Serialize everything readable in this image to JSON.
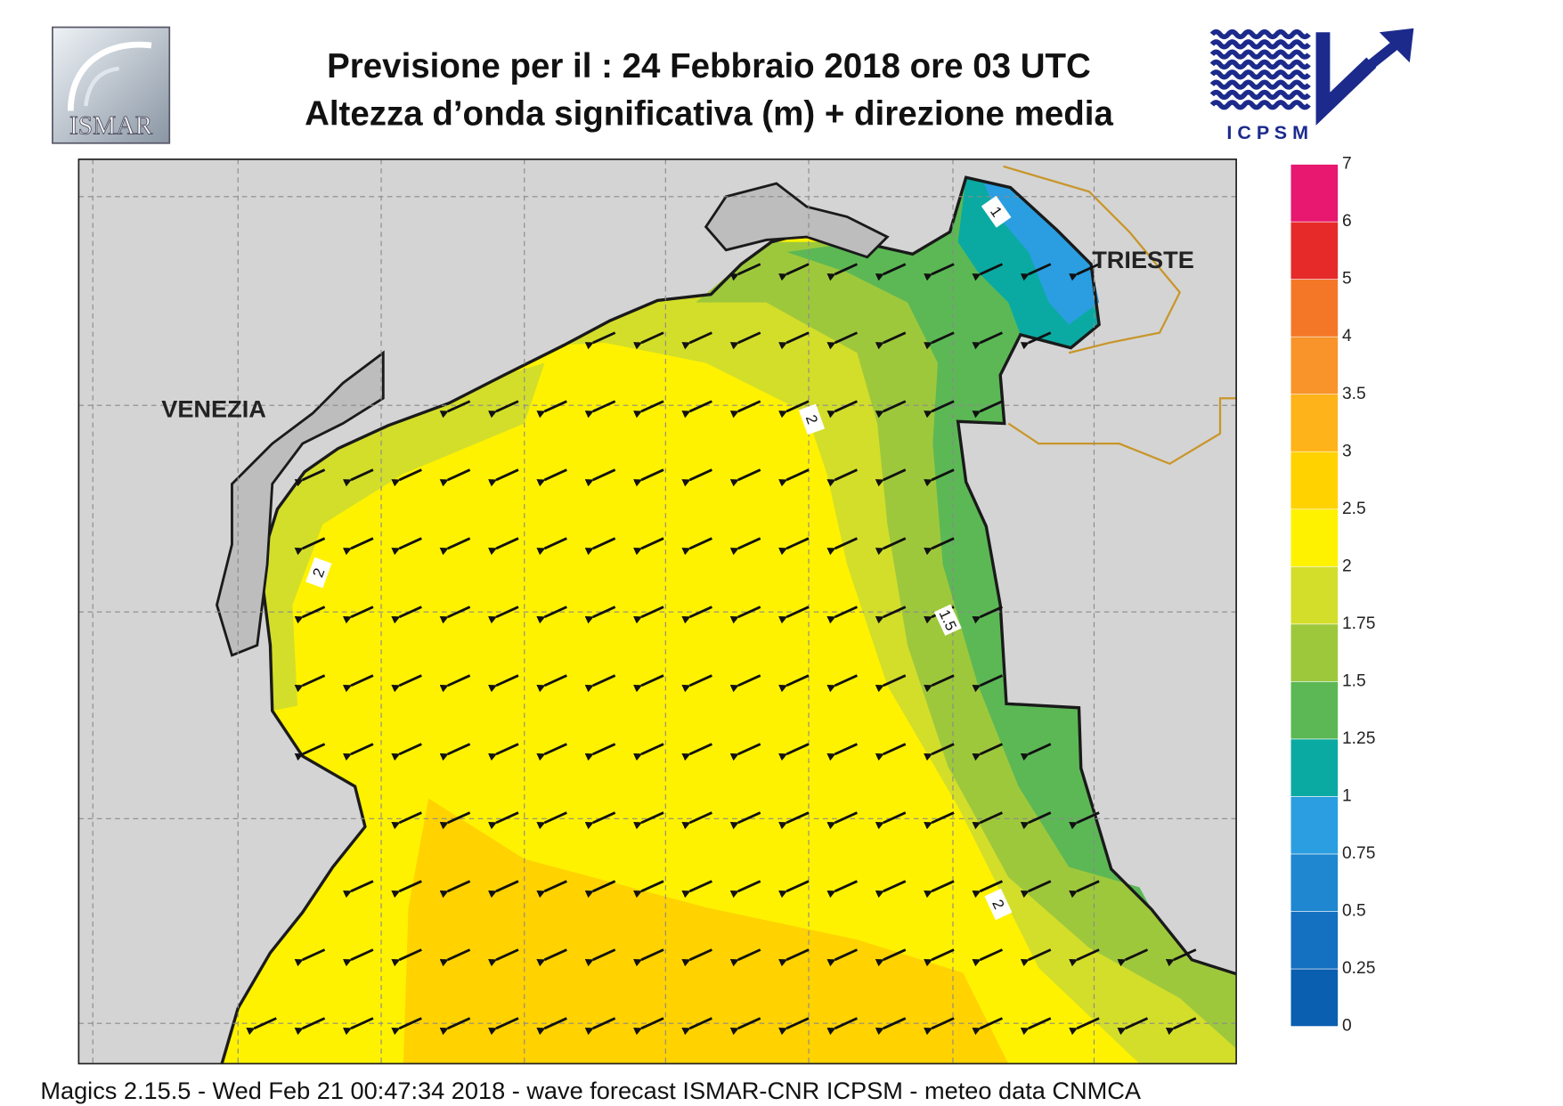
{
  "header": {
    "title_line1": "Previsione per il  :  24  Febbraio 2018   ore 03 UTC",
    "title_line2": "Altezza d’onda significativa (m) + direzione media",
    "logo_left": "ISMAR",
    "logo_right": "I C P S M"
  },
  "map": {
    "cities": [
      "VENEZIA",
      "TRIESTE"
    ],
    "contour_labels": [
      "1",
      "2",
      "2",
      "1.5",
      "2"
    ]
  },
  "colorbar": {
    "ticks": [
      "0",
      "0.25",
      "0.5",
      "0.75",
      "1",
      "1.25",
      "1.5",
      "1.75",
      "2",
      "2.5",
      "3",
      "3.5",
      "4",
      "5",
      "6",
      "7"
    ],
    "colors": [
      "#0a5fb0",
      "#1470c0",
      "#1f86d0",
      "#2a9ee0",
      "#0aaaa2",
      "#5cb855",
      "#9ec83c",
      "#d3de2a",
      "#fff200",
      "#ffd200",
      "#ffb31a",
      "#f8942a",
      "#f47728",
      "#e62a2a",
      "#e8176f"
    ]
  },
  "footer": "Magics 2.15.5 - Wed Feb 21 00:47:34 2018 - wave forecast  ISMAR-CNR  ICPSM - meteo data   CNMCA"
}
